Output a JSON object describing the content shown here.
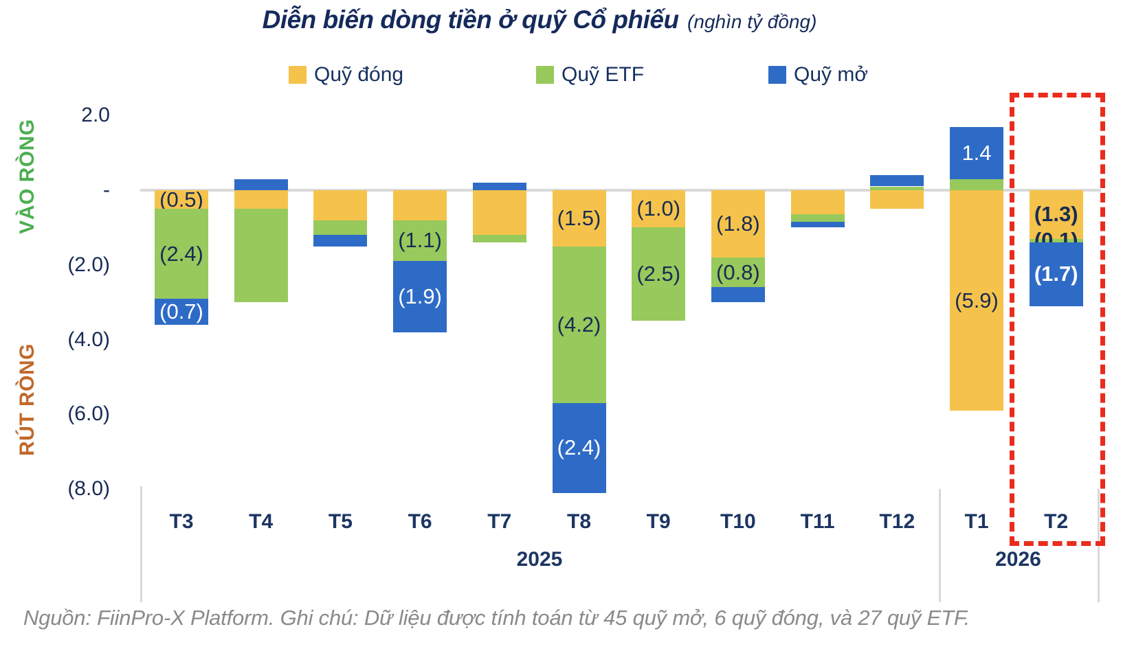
{
  "title": {
    "main": "Diễn biến dòng tiền ở quỹ Cổ phiếu",
    "unit": "(nghìn tỷ đồng)"
  },
  "side_labels": {
    "inflow": "VÀO RÒNG",
    "outflow": "RÚT RÒNG",
    "inflow_color": "#4cae50",
    "outflow_color": "#c0692b"
  },
  "legend": [
    {
      "label": "Quỹ đóng",
      "color": "#f5c34b"
    },
    {
      "label": "Quỹ ETF",
      "color": "#97c95c"
    },
    {
      "label": "Quỹ mở",
      "color": "#2e6bc6"
    }
  ],
  "footer": "Nguồn: FiinPro-X Platform. Ghi chú: Dữ liệu được tính toán từ 45 quỹ mở, 6 quỹ đóng, và 27 quỹ ETF.",
  "chart_data": {
    "type": "bar",
    "stacked": true,
    "unit": "nghìn tỷ đồng",
    "categories": [
      "T3",
      "T4",
      "T5",
      "T6",
      "T7",
      "T8",
      "T9",
      "T10",
      "T11",
      "T12",
      "T1",
      "T2"
    ],
    "year_groups": [
      {
        "label": "2025",
        "months": [
          "T3",
          "T4",
          "T5",
          "T6",
          "T7",
          "T8",
          "T9",
          "T10",
          "T11",
          "T12"
        ]
      },
      {
        "label": "2026",
        "months": [
          "T1",
          "T2"
        ]
      }
    ],
    "y_ticks": [
      {
        "label": "2.0",
        "value": 2
      },
      {
        "label": "-",
        "value": 0
      },
      {
        "label": "(2.0)",
        "value": -2
      },
      {
        "label": "(4.0)",
        "value": -4
      },
      {
        "label": "(6.0)",
        "value": -6
      },
      {
        "label": "(8.0)",
        "value": -8
      }
    ],
    "ylim": [
      -8.5,
      2.2
    ],
    "grid": "zero-line-only",
    "legend_position": "top",
    "series": [
      {
        "name": "Quỹ đóng",
        "color": "#f5c34b",
        "values": [
          -0.5,
          -0.5,
          -0.8,
          -0.8,
          -1.2,
          -1.5,
          -1.0,
          -1.8,
          -0.65,
          -0.5,
          -5.9,
          -1.3
        ],
        "labels": [
          "(0.5)",
          null,
          null,
          null,
          null,
          "(1.5)",
          "(1.0)",
          "(1.8)",
          null,
          null,
          "(5.9)",
          "(1.3)"
        ]
      },
      {
        "name": "Quỹ ETF",
        "color": "#97c95c",
        "values": [
          -2.4,
          -2.5,
          -0.4,
          -1.1,
          -0.2,
          -4.2,
          -2.5,
          -0.8,
          -0.2,
          0.1,
          0.3,
          -0.1
        ],
        "labels": [
          "(2.4)",
          null,
          null,
          "(1.1)",
          null,
          "(4.2)",
          "(2.5)",
          "(0.8)",
          null,
          null,
          null,
          "(0.1)"
        ]
      },
      {
        "name": "Quỹ mở",
        "color": "#2e6bc6",
        "values": [
          -0.7,
          0.3,
          -0.3,
          -1.9,
          0.2,
          -2.4,
          0,
          -0.4,
          -0.15,
          0.3,
          1.4,
          -1.7
        ],
        "labels": [
          "(0.7)",
          null,
          null,
          "(1.9)",
          null,
          "(2.4)",
          null,
          null,
          null,
          null,
          "1.4",
          "(1.7)"
        ]
      }
    ],
    "highlight": {
      "category": "T2",
      "style": "red-dashed-box",
      "color": "#e92c1e"
    }
  }
}
